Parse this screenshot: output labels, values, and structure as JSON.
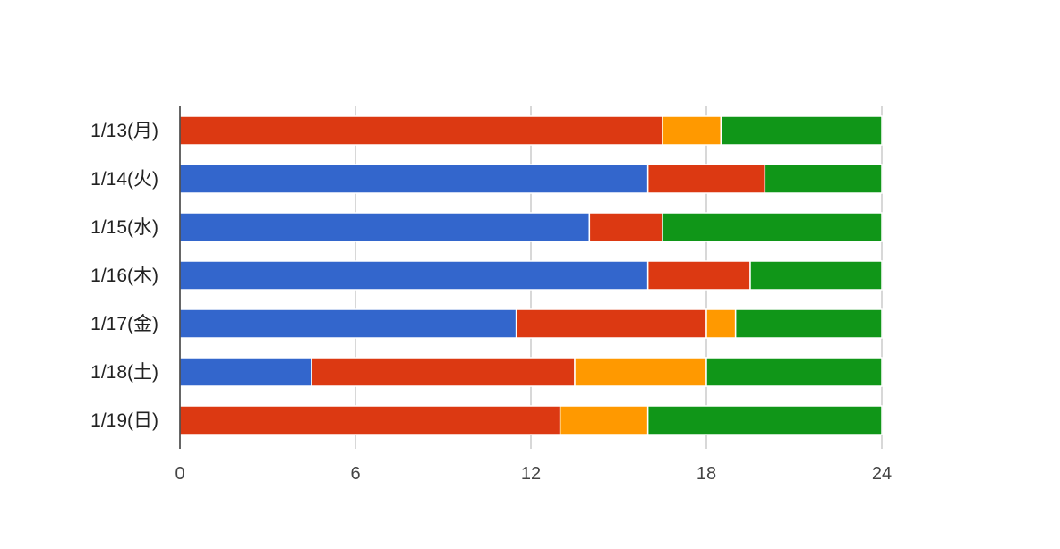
{
  "chart_data": {
    "type": "bar",
    "orientation": "horizontal",
    "stacked": true,
    "categories": [
      "1/13(月)",
      "1/14(火)",
      "1/15(水)",
      "1/16(木)",
      "1/17(金)",
      "1/18(土)",
      "1/19(日)"
    ],
    "series": [
      {
        "color": "#3366cc",
        "values": [
          0,
          16,
          14,
          16,
          11.5,
          4.5,
          0
        ]
      },
      {
        "color": "#dc3912",
        "values": [
          16.5,
          4,
          2.5,
          3.5,
          6.5,
          9,
          13
        ]
      },
      {
        "color": "#ff9900",
        "values": [
          2,
          0,
          0,
          0,
          1,
          4.5,
          3
        ]
      },
      {
        "color": "#109618",
        "values": [
          5.5,
          4,
          7.5,
          4.5,
          5,
          6,
          8
        ]
      }
    ],
    "xlim": [
      0,
      24
    ],
    "xticks": [
      0,
      6,
      12,
      18,
      24
    ],
    "xtick_labels": [
      "0",
      "6",
      "12",
      "18",
      "24"
    ],
    "grid": true,
    "legend": "none"
  }
}
